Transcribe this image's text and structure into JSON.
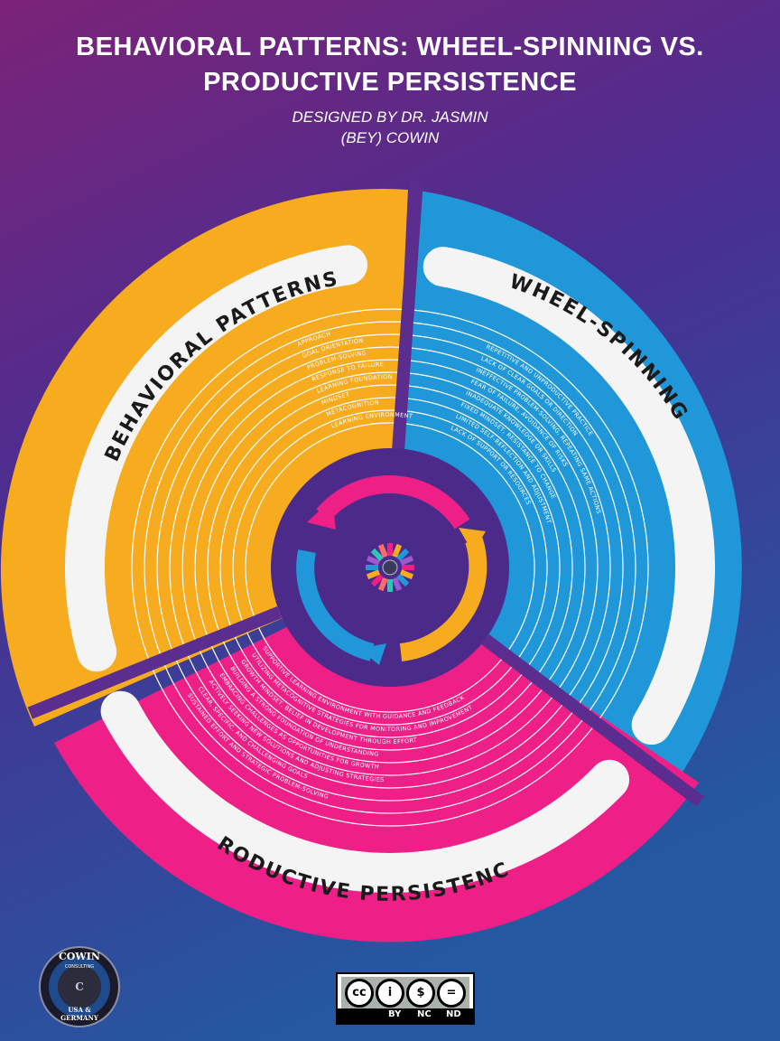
{
  "header": {
    "title_line1": "BEHAVIORAL PATTERNS: WHEEL-SPINNING VS.",
    "title_line2": "PRODUCTIVE PERSISTENCE",
    "subtitle_line1": "DESIGNED BY DR. JASMIN",
    "subtitle_line2": "(BEY) COWIN"
  },
  "colors": {
    "bg_top": "#7b2378",
    "bg_mid": "#4a2e91",
    "bg_bottom": "#2458a0",
    "orange": "#f7ab1e",
    "blue": "#1f97d8",
    "pink": "#ee1f86",
    "center": "#4b2a8a"
  },
  "sections": {
    "behavioral": {
      "label": "BEHAVIORAL PATTERNS",
      "items": [
        "APPROACH",
        "GOAL ORIENTATION",
        "PROBLEM-SOLVING",
        "RESPONSE TO FAILURE",
        "LEARNING FOUNDATION",
        "MINDSET",
        "METACOGNITION",
        "LEARNING ENVIRONMENT"
      ]
    },
    "wheel_spinning": {
      "label": "WHEEL-SPINNING",
      "items": [
        "REPETITIVE AND UNPRODUCTIVE PRACTICE",
        "LACK OF CLEAR GOALS OR DIRECTION",
        "INEFFECTIVE PROBLEM-SOLVING, REPEATING SAME ACTIONS",
        "FEAR OF FAILURE, AVOIDANCE OF RISKS",
        "INADEQUATE KNOWLEDGE OR SKILLS",
        "FIXED MINDSET, RESISTANCE TO CHANGE",
        "LIMITED SELF-REFLECTION AND ADJUSTMENT",
        "LACK OF SUPPORT OR RESOURCES"
      ]
    },
    "productive_persistence": {
      "label": "PRODUCTIVE PERSISTENCE",
      "items": [
        "SUSTAINED EFFORT AND STRATEGIC PROBLEM-SOLVING",
        "CLEAR, SPECIFIC, AND CHALLENGING GOALS",
        "ACTIVELY SEEKING NEW SOLUTIONS AND ADJUSTING STRATEGIES",
        "EMBRACING CHALLENGES AS OPPORTUNITIES FOR GROWTH",
        "BUILDING A STRONG FOUNDATION OF UNDERSTANDING",
        "GROWTH MINDSET, BELIEF IN DEVELOPMENT THROUGH EFFORT",
        "UTILIZING METACOGNITIVE STRATEGIES FOR MONITORING AND IMPROVEMENT",
        "SUPPORTIVE LEARNING ENVIRONMENT WITH GUIDANCE AND FEEDBACK"
      ]
    }
  },
  "footer": {
    "logo_top": "COWIN",
    "logo_sub": "CONSULTING",
    "logo_bottom1": "USA &",
    "logo_bottom2": "GERMANY",
    "cc_by": "BY",
    "cc_nc": "NC",
    "cc_nd": "ND",
    "cc_mark": "cc"
  }
}
